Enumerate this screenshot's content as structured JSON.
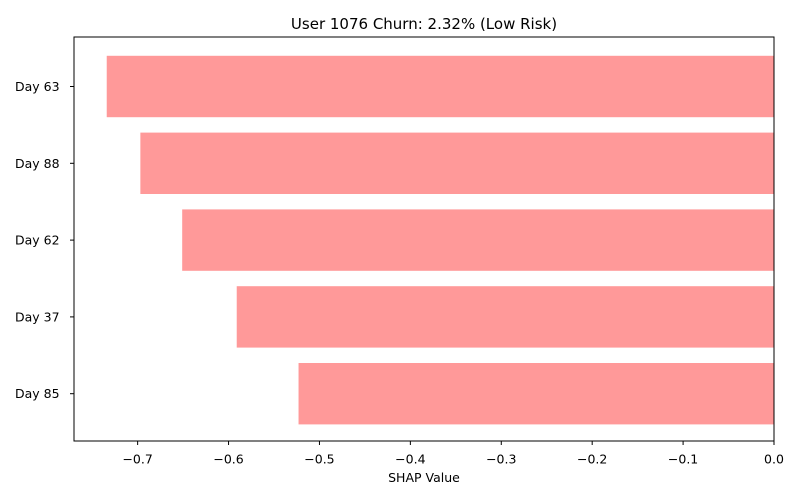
{
  "chart_data": {
    "type": "bar",
    "orientation": "horizontal",
    "title": "User 1076 Churn: 2.32% (Low Risk)",
    "xlabel": "SHAP Value",
    "ylabel": "",
    "categories": [
      "Day 63",
      "Day 88",
      "Day 62",
      "Day 37",
      "Day 85"
    ],
    "values": [
      -0.734,
      -0.697,
      -0.651,
      -0.591,
      -0.523
    ],
    "xlim": [
      -0.77,
      0.0
    ],
    "xticks": [
      -0.7,
      -0.6,
      -0.5,
      -0.4,
      -0.3,
      -0.2,
      -0.1,
      0.0
    ],
    "xtick_labels": [
      "−0.7",
      "−0.6",
      "−0.5",
      "−0.4",
      "−0.3",
      "−0.2",
      "−0.1",
      "0.0"
    ],
    "bar_color": "#ff9999",
    "grid": false,
    "legend": "none"
  }
}
